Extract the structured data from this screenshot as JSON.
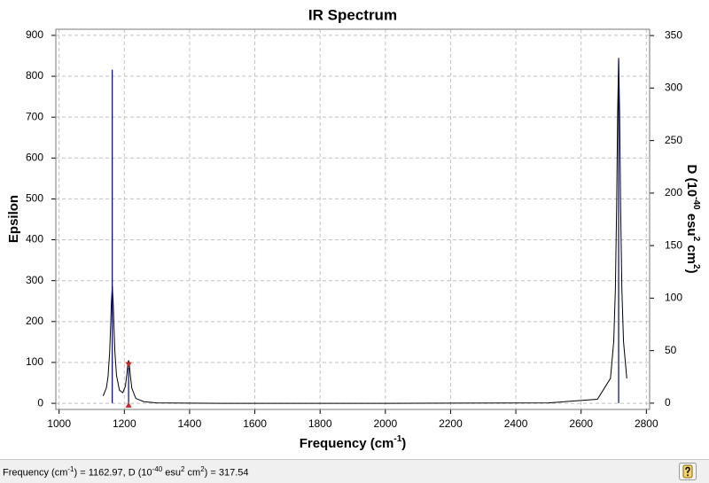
{
  "chart_data": {
    "type": "line",
    "title": "IR Spectrum",
    "xlabel": [
      "Frequency (cm",
      "-1",
      ")"
    ],
    "ylabel": "Epsilon",
    "y2label": [
      "D (10",
      "-40",
      " esu",
      "2",
      " cm",
      "2",
      ")"
    ],
    "xlim": [
      990,
      2810
    ],
    "ylim": [
      -15,
      915
    ],
    "y2lim": [
      -6,
      356
    ],
    "xticks": [
      1000,
      1200,
      1400,
      1600,
      1800,
      2000,
      2200,
      2400,
      2600,
      2800
    ],
    "yticks": [
      0,
      100,
      200,
      300,
      400,
      500,
      600,
      700,
      800,
      900
    ],
    "y2ticks": [
      0,
      50,
      100,
      150,
      200,
      250,
      300,
      350
    ],
    "grid": true,
    "series": [
      {
        "type": "line",
        "axis": "y",
        "color": "#000000",
        "x": [
          1135,
          1145,
          1150,
          1155,
          1158,
          1160,
          1163,
          1166,
          1168,
          1171,
          1176,
          1185,
          1195,
          1203,
          1208,
          1211,
          1213,
          1215,
          1218,
          1223,
          1235,
          1260,
          1300,
          1500,
          2000,
          2500,
          2650,
          2690,
          2700,
          2705,
          2709,
          2712,
          2715,
          2718,
          2721,
          2725,
          2730,
          2740
        ],
        "values": [
          18,
          38,
          65,
          125,
          190,
          242,
          287,
          243,
          191,
          126,
          68,
          32,
          26,
          41,
          73,
          98,
          105,
          98,
          71,
          37,
          12,
          4,
          1,
          0,
          0,
          1,
          10,
          61,
          151,
          278,
          487,
          714,
          845,
          714,
          487,
          278,
          151,
          61
        ]
      },
      {
        "type": "stick",
        "axis": "y2",
        "color": "#000080",
        "x": [
          1162.97,
          1213,
          2715
        ],
        "values": [
          317.54,
          34,
          327
        ]
      }
    ]
  },
  "status_bar": {
    "segments": [
      "Frequency (cm",
      "-1",
      ") = ",
      ", D (10",
      "-40",
      " esu",
      "2",
      " cm",
      "2",
      ") = "
    ]
  }
}
